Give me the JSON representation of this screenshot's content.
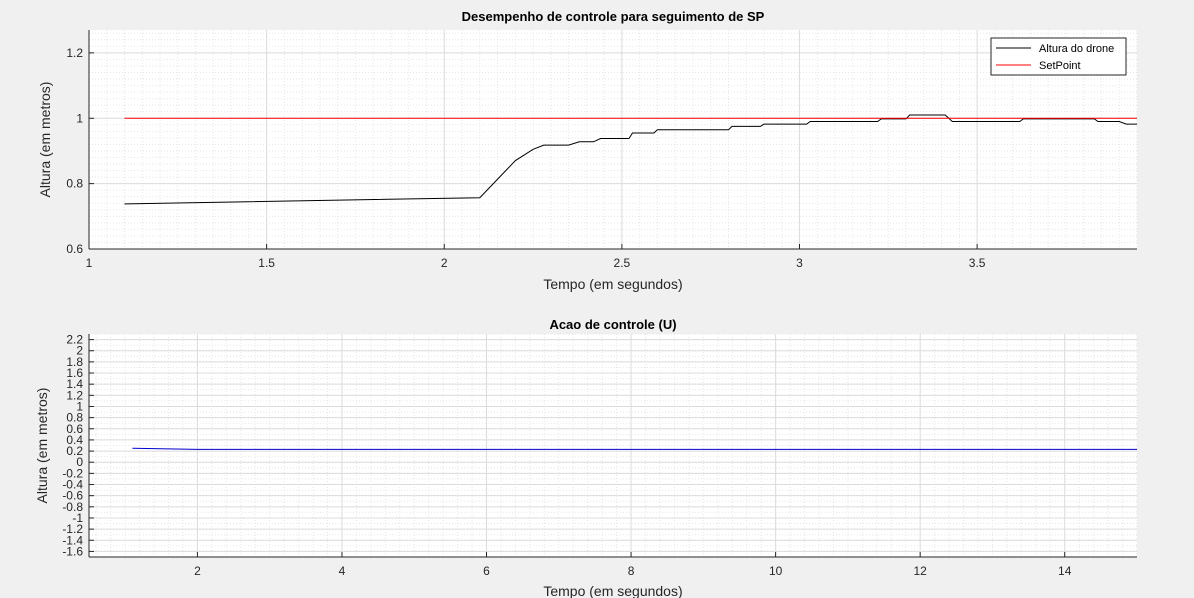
{
  "chart_data": [
    {
      "type": "line",
      "title": "Desempenho de controle para seguimento de SP",
      "xlabel": "Tempo (em segundos)",
      "ylabel": "Altura (em metros)",
      "xlim": [
        1,
        3.95
      ],
      "ylim": [
        0.6,
        1.27
      ],
      "xticks": [
        1,
        1.5,
        2,
        2.5,
        3,
        3.5
      ],
      "xtick_labels": [
        "1",
        "1.5",
        "2",
        "2.5",
        "3",
        "3.5"
      ],
      "yticks": [
        0.6,
        0.8,
        1,
        1.2
      ],
      "ytick_labels": [
        "0.6",
        "0.8",
        "1",
        "1.2"
      ],
      "grid": true,
      "minor_grid": true,
      "legend_position": "top-right",
      "series": [
        {
          "name": "Altura do drone",
          "color": "#000000",
          "x": [
            1.1,
            2.1,
            2.2,
            2.25,
            2.28,
            2.35,
            2.38,
            2.4,
            2.42,
            2.44,
            2.52,
            2.53,
            2.59,
            2.6,
            2.68,
            2.8,
            2.81,
            2.89,
            2.9,
            3.02,
            3.03,
            3.22,
            3.23,
            3.3,
            3.31,
            3.41,
            3.43,
            3.62,
            3.63,
            3.83,
            3.84,
            3.9,
            3.92,
            3.95
          ],
          "y": [
            0.738,
            0.757,
            0.87,
            0.905,
            0.918,
            0.918,
            0.928,
            0.928,
            0.928,
            0.938,
            0.938,
            0.955,
            0.955,
            0.965,
            0.965,
            0.965,
            0.975,
            0.975,
            0.982,
            0.982,
            0.99,
            0.99,
            0.998,
            0.998,
            1.01,
            1.01,
            0.99,
            0.99,
            0.998,
            0.998,
            0.99,
            0.99,
            0.982,
            0.982
          ]
        },
        {
          "name": "SetPoint",
          "color": "#ff0000",
          "x": [
            1.1,
            3.95
          ],
          "y": [
            1,
            1
          ]
        }
      ]
    },
    {
      "type": "line",
      "title": "Acao de controle (U)",
      "xlabel": "Tempo (em segundos)",
      "ylabel": "Altura (em metros)",
      "xlim": [
        0.5,
        15
      ],
      "ylim": [
        -1.7,
        2.3
      ],
      "xticks": [
        2,
        4,
        6,
        8,
        10,
        12,
        14
      ],
      "xtick_labels": [
        "2",
        "4",
        "6",
        "8",
        "10",
        "12",
        "14"
      ],
      "yticks": [
        -1.6,
        -1.4,
        -1.2,
        -1,
        -0.8,
        -0.6,
        -0.4,
        -0.2,
        0,
        0.2,
        0.4,
        0.6,
        0.8,
        1,
        1.2,
        1.4,
        1.6,
        1.8,
        2,
        2.2
      ],
      "ytick_labels": [
        "-1.6",
        "-1.4",
        "-1.2",
        "-1",
        "-0.8",
        "-0.6",
        "-0.4",
        "-0.2",
        "0",
        "0.2",
        "0.4",
        "0.6",
        "0.8",
        "1",
        "1.2",
        "1.4",
        "1.6",
        "1.8",
        "2",
        "2.2"
      ],
      "grid": true,
      "minor_grid": true,
      "series": [
        {
          "color": "#0000cc",
          "x": [
            1.1,
            1.5,
            2,
            4,
            8,
            12,
            15
          ],
          "y": [
            0.25,
            0.24,
            0.23,
            0.23,
            0.23,
            0.23,
            0.23
          ]
        }
      ]
    }
  ]
}
